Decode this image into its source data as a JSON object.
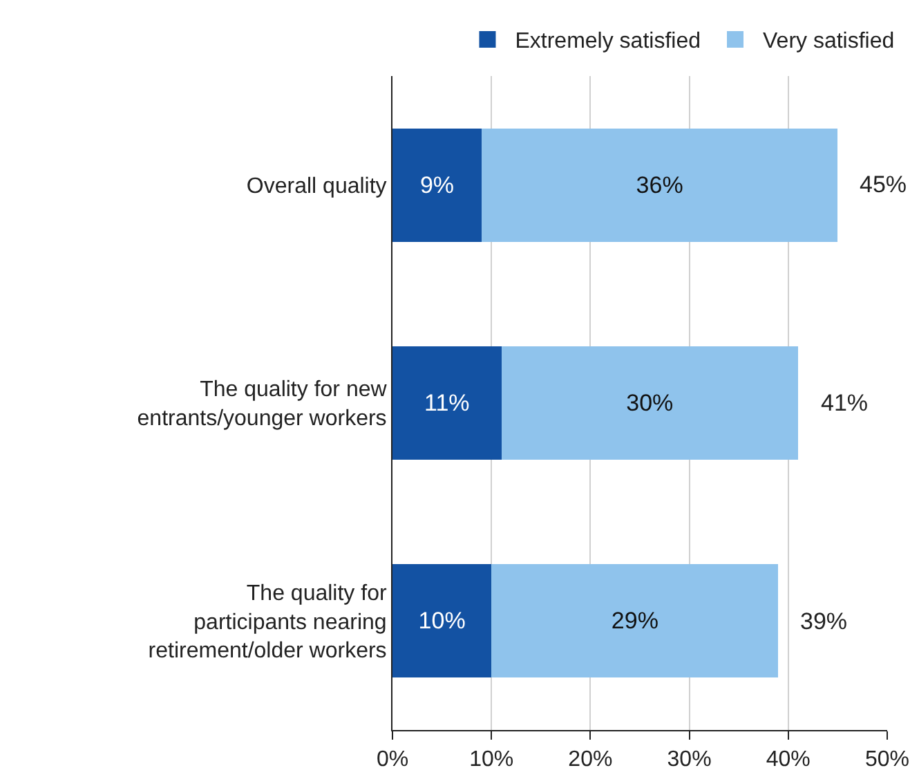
{
  "chart_data": {
    "type": "bar",
    "orientation": "horizontal",
    "stacked": true,
    "categories": [
      "Overall quality",
      "The quality for new entrants/younger workers",
      "The quality for participants nearing retirement/older workers"
    ],
    "series": [
      {
        "name": "Extremely satisfied",
        "color": "#1352a3",
        "values": [
          9,
          11,
          10
        ],
        "value_labels": [
          "9%",
          "11%",
          "10%"
        ]
      },
      {
        "name": "Very satisfied",
        "color": "#8fc3ec",
        "values": [
          36,
          30,
          29
        ],
        "value_labels": [
          "36%",
          "30%",
          "29%"
        ]
      }
    ],
    "totals": [
      "45%",
      "41%",
      "39%"
    ],
    "xlim": [
      0,
      50
    ],
    "xticks": [
      {
        "value": 0,
        "label": "0%"
      },
      {
        "value": 10,
        "label": "10%"
      },
      {
        "value": 20,
        "label": "20%"
      },
      {
        "value": 30,
        "label": "30%"
      },
      {
        "value": 40,
        "label": "40%"
      },
      {
        "value": 50,
        "label": "50%"
      }
    ],
    "grid": "x",
    "legend": "top right"
  }
}
